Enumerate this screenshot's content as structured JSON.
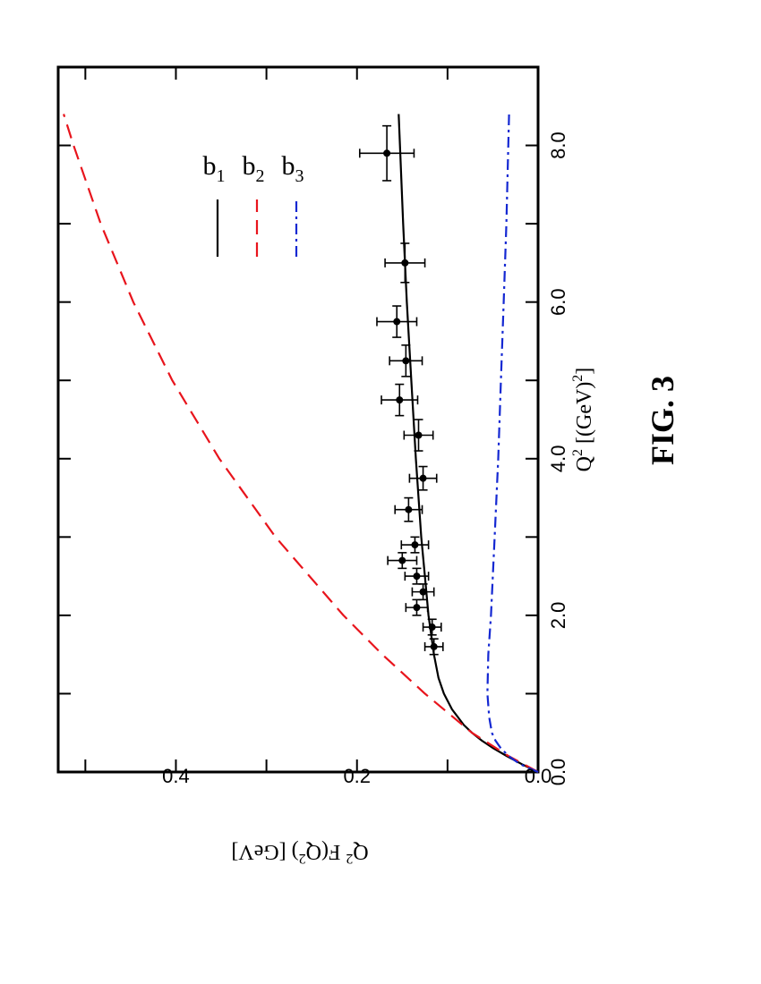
{
  "chart_data": {
    "type": "line",
    "orientation": "rotated 90 degrees counter-clockwise",
    "xlabel": {
      "base": "Q",
      "sup": "2",
      "unit_pre": " [(GeV)",
      "unit_sup": "2",
      "unit_post": "]"
    },
    "ylabel": {
      "base": "Q",
      "sup1": "2",
      "mid": " F(Q",
      "sup2": "2",
      "post": ")   [GeV]"
    },
    "xlim": [
      0,
      9.0
    ],
    "ylim": [
      0,
      0.53
    ],
    "xticks": [
      0,
      1,
      2,
      3,
      4,
      5,
      6,
      7,
      8
    ],
    "xtick_labels": [
      {
        "value": 0,
        "label": "0.0"
      },
      {
        "value": 2,
        "label": "2.0"
      },
      {
        "value": 4,
        "label": "4.0"
      },
      {
        "value": 6,
        "label": "6.0"
      },
      {
        "value": 8,
        "label": "8.0"
      }
    ],
    "yticks": [
      0,
      0.1,
      0.2,
      0.3,
      0.4,
      0.5
    ],
    "ytick_labels": [
      {
        "value": 0,
        "label": "0.0"
      },
      {
        "value": 0.2,
        "label": "0.2"
      },
      {
        "value": 0.4,
        "label": "0.4"
      }
    ],
    "legend_position": "top-right",
    "series": [
      {
        "name": "b",
        "sub": "1",
        "style": "solid",
        "color": "#000000",
        "x": [
          0,
          0.1,
          0.2,
          0.3,
          0.4,
          0.5,
          0.6,
          0.8,
          1.0,
          1.2,
          1.5,
          2.0,
          2.5,
          3.0,
          4.0,
          5.0,
          6.0,
          7.0,
          8.4
        ],
        "y": [
          0,
          0.018,
          0.034,
          0.049,
          0.062,
          0.073,
          0.082,
          0.095,
          0.104,
          0.11,
          0.115,
          0.121,
          0.125,
          0.129,
          0.135,
          0.14,
          0.145,
          0.149,
          0.154
        ]
      },
      {
        "name": "b",
        "sub": "2",
        "style": "dashed",
        "color": "#e8141c",
        "x": [
          0,
          0.2,
          0.5,
          1.0,
          1.5,
          2.0,
          3.0,
          4.0,
          5.0,
          6.0,
          7.0,
          8.0,
          8.4
        ],
        "y": [
          0,
          0.032,
          0.073,
          0.125,
          0.172,
          0.215,
          0.29,
          0.352,
          0.404,
          0.447,
          0.483,
          0.513,
          0.524
        ]
      },
      {
        "name": "b",
        "sub": "3",
        "style": "dash-dot",
        "color": "#1428d2",
        "x": [
          0,
          0.1,
          0.2,
          0.3,
          0.4,
          0.5,
          0.7,
          1.0,
          1.5,
          2.0,
          3.0,
          4.0,
          5.0,
          6.0,
          7.0,
          8.4
        ],
        "y": [
          0,
          0.02,
          0.032,
          0.041,
          0.047,
          0.051,
          0.054,
          0.056,
          0.055,
          0.052,
          0.048,
          0.044,
          0.041,
          0.038,
          0.035,
          0.032
        ]
      }
    ],
    "data_points": {
      "color": "#000000",
      "points": [
        {
          "x": 1.6,
          "y": 0.115,
          "xerr": 0.1,
          "yerr": 0.01
        },
        {
          "x": 1.85,
          "y": 0.117,
          "xerr": 0.1,
          "yerr": 0.01
        },
        {
          "x": 2.1,
          "y": 0.134,
          "xerr": 0.1,
          "yerr": 0.012
        },
        {
          "x": 2.3,
          "y": 0.127,
          "xerr": 0.1,
          "yerr": 0.012
        },
        {
          "x": 2.5,
          "y": 0.134,
          "xerr": 0.1,
          "yerr": 0.013
        },
        {
          "x": 2.7,
          "y": 0.15,
          "xerr": 0.1,
          "yerr": 0.016
        },
        {
          "x": 2.9,
          "y": 0.136,
          "xerr": 0.1,
          "yerr": 0.015
        },
        {
          "x": 3.35,
          "y": 0.143,
          "xerr": 0.15,
          "yerr": 0.015
        },
        {
          "x": 3.75,
          "y": 0.127,
          "xerr": 0.15,
          "yerr": 0.015
        },
        {
          "x": 4.3,
          "y": 0.132,
          "xerr": 0.2,
          "yerr": 0.016
        },
        {
          "x": 4.75,
          "y": 0.153,
          "xerr": 0.2,
          "yerr": 0.02
        },
        {
          "x": 5.25,
          "y": 0.146,
          "xerr": 0.2,
          "yerr": 0.018
        },
        {
          "x": 5.75,
          "y": 0.156,
          "xerr": 0.2,
          "yerr": 0.022
        },
        {
          "x": 6.5,
          "y": 0.147,
          "xerr": 0.25,
          "yerr": 0.022
        },
        {
          "x": 7.9,
          "y": 0.167,
          "xerr": 0.35,
          "yerr": 0.03
        }
      ]
    }
  },
  "figure_caption": "FIG. 3"
}
